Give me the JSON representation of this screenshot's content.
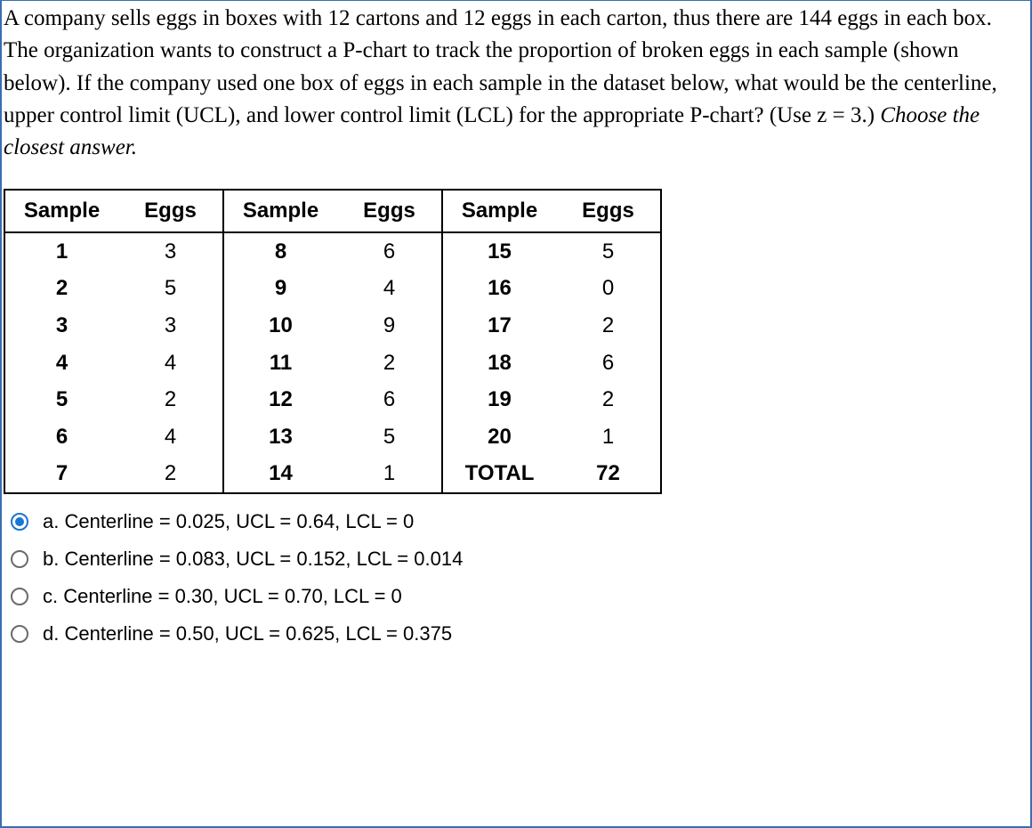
{
  "question": {
    "part1": "A company sells eggs in boxes with 12 cartons and 12 eggs in each carton, thus there are 144 eggs in each box. The organization wants to construct a P-chart to track the proportion of broken eggs in each sample (shown below). If the company used one box of eggs in each sample in the dataset below, what would be the centerline, upper control limit (UCL), and lower control limit (LCL) for the appropriate P-chart? (Use z = 3.) ",
    "part2_italic": "Choose the closest answer."
  },
  "table": {
    "headers": [
      "Sample",
      "Eggs",
      "Sample",
      "Eggs",
      "Sample",
      "Eggs"
    ],
    "rows": [
      [
        "1",
        "3",
        "8",
        "6",
        "15",
        "5"
      ],
      [
        "2",
        "5",
        "9",
        "4",
        "16",
        "0"
      ],
      [
        "3",
        "3",
        "10",
        "9",
        "17",
        "2"
      ],
      [
        "4",
        "4",
        "11",
        "2",
        "18",
        "6"
      ],
      [
        "5",
        "2",
        "12",
        "6",
        "19",
        "2"
      ],
      [
        "6",
        "4",
        "13",
        "5",
        "20",
        "1"
      ],
      [
        "7",
        "2",
        "14",
        "1",
        "TOTAL",
        "72"
      ]
    ]
  },
  "options": [
    {
      "id": "a",
      "label": "a. Centerline = 0.025, UCL = 0.64, LCL = 0",
      "selected": true
    },
    {
      "id": "b",
      "label": "b. Centerline = 0.083, UCL = 0.152, LCL = 0.014",
      "selected": false
    },
    {
      "id": "c",
      "label": "c. Centerline = 0.30, UCL = 0.70, LCL = 0",
      "selected": false
    },
    {
      "id": "d",
      "label": "d. Centerline = 0.50, UCL = 0.625, LCL = 0.375",
      "selected": false
    }
  ]
}
